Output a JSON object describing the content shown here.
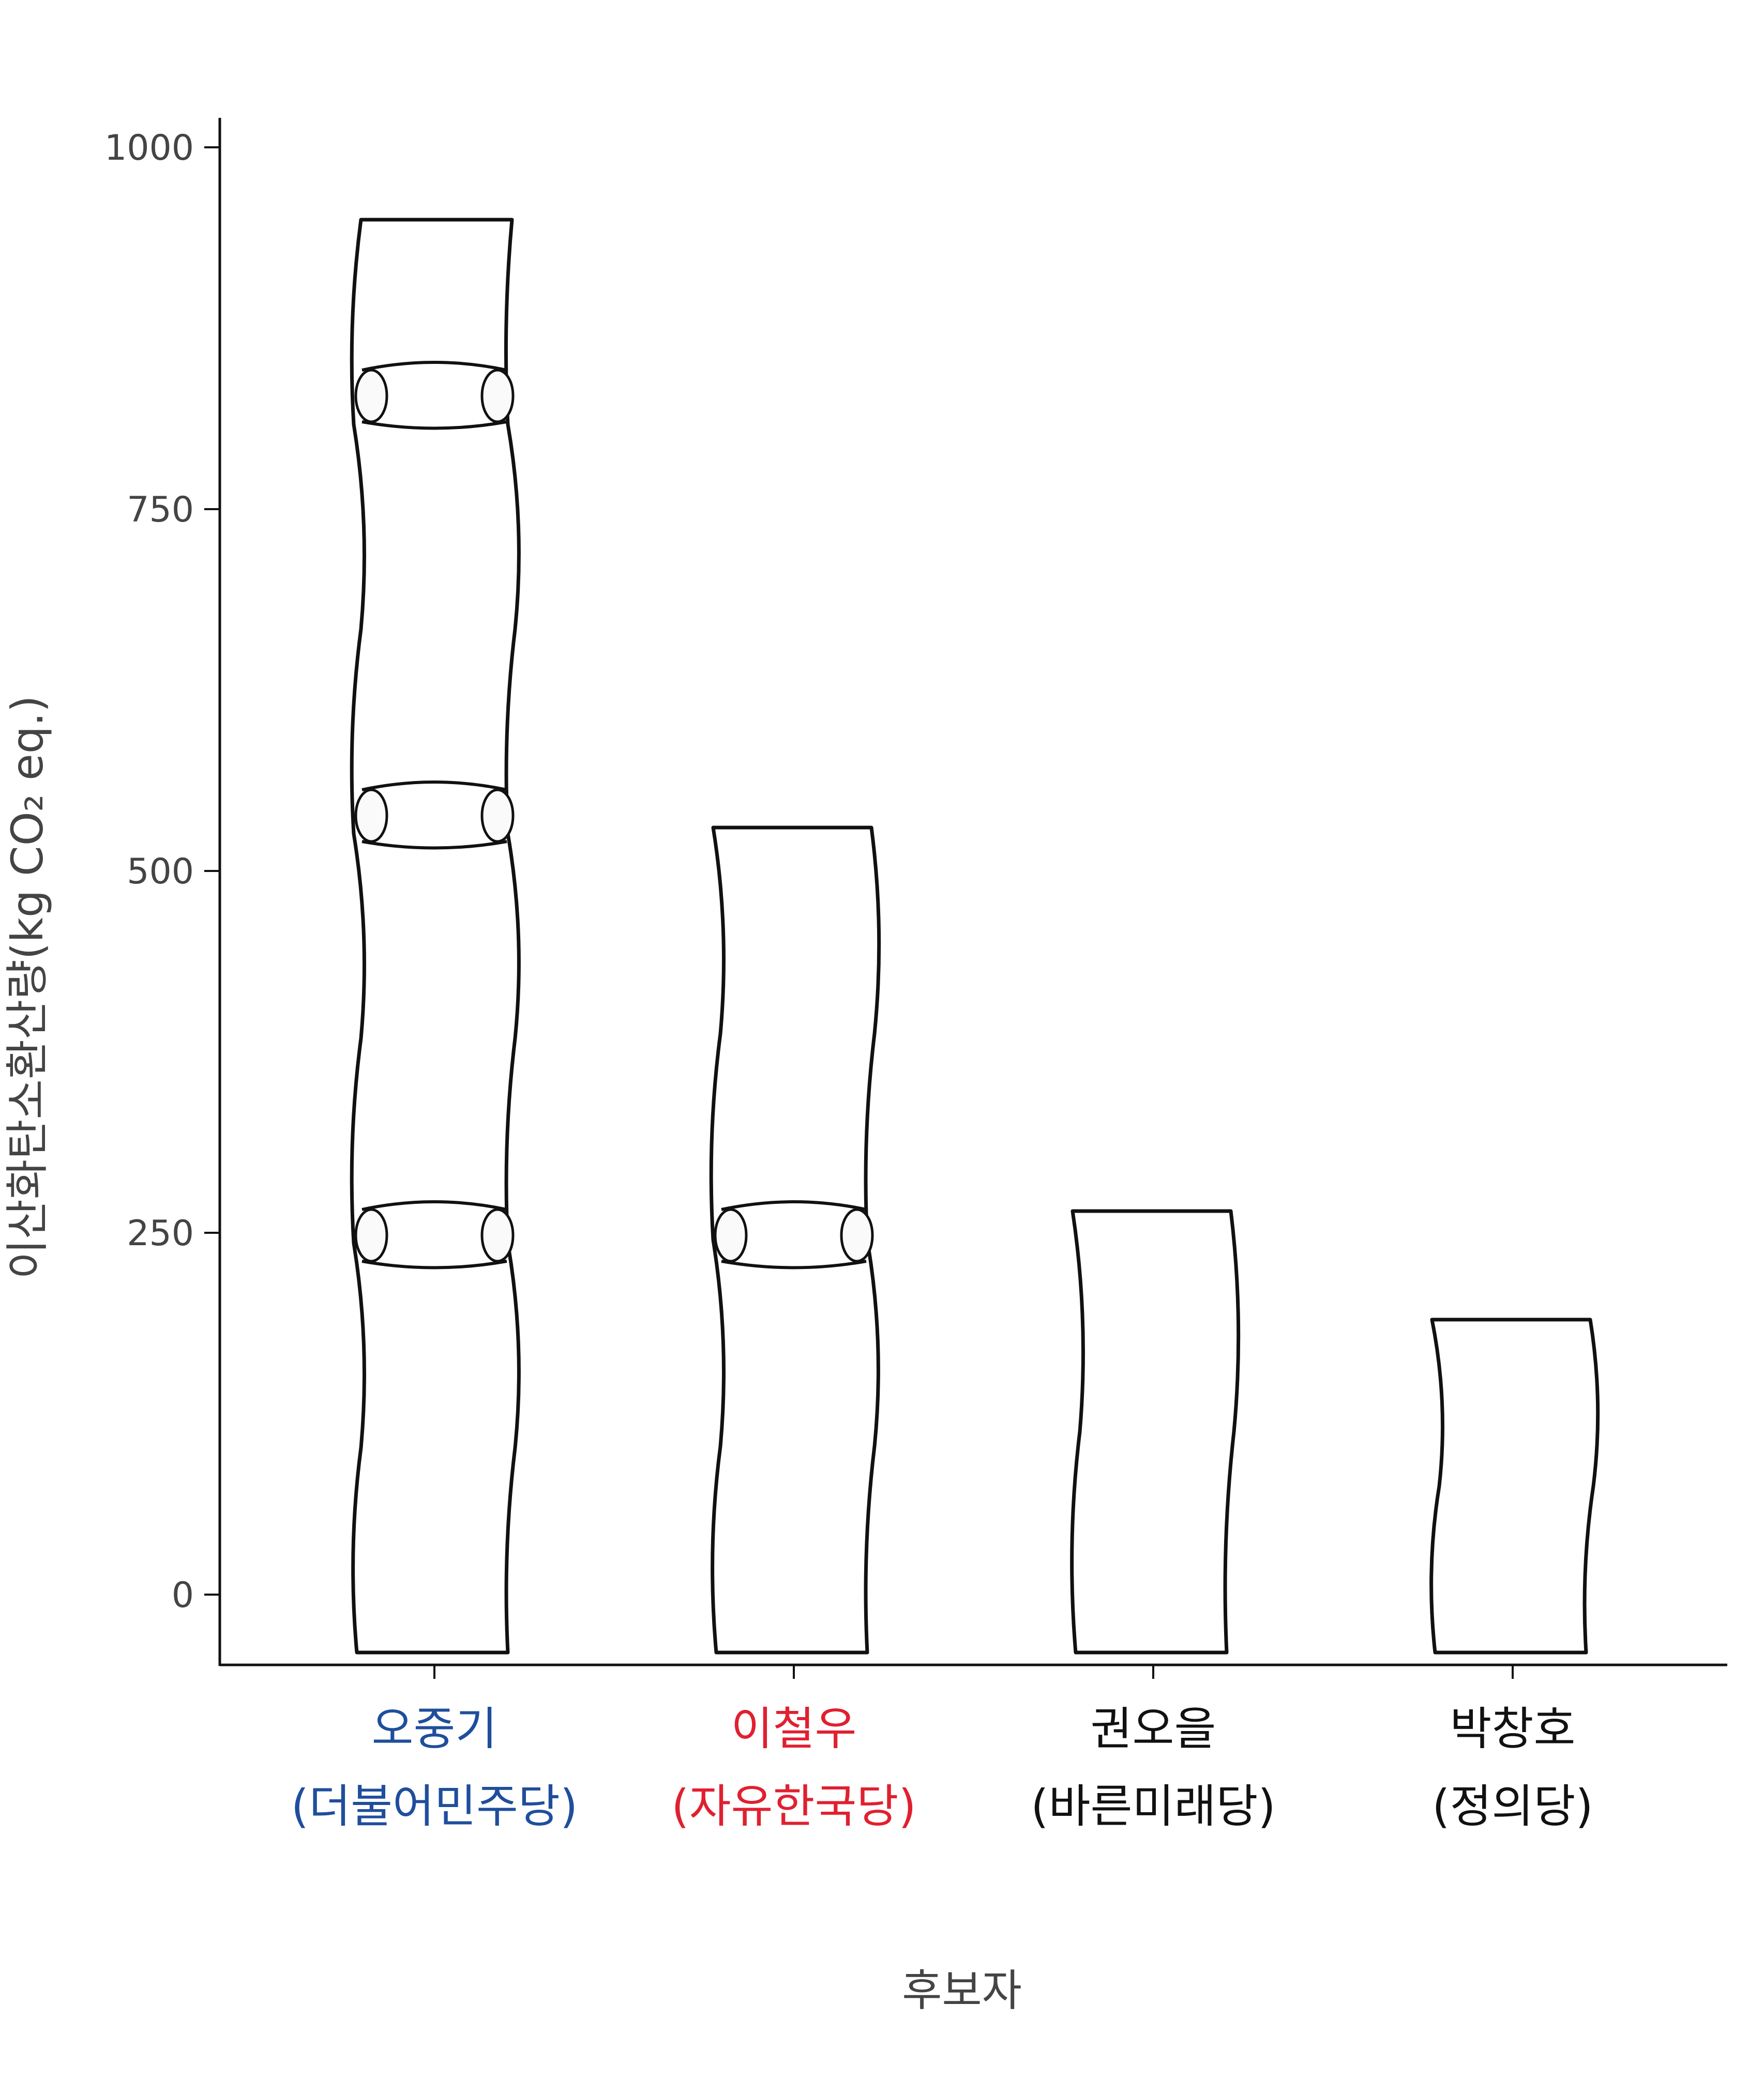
{
  "chart_data": {
    "type": "bar",
    "title": "",
    "xlabel": "후보자",
    "ylabel": "이산화탄소환산량(kg CO₂ eq.)",
    "ylim": [
      -45,
      1020
    ],
    "yticks": [
      0,
      250,
      500,
      750,
      1000
    ],
    "grid": false,
    "legend": "none",
    "categories": [
      {
        "name": "오중기",
        "party": "(더불어민주당)",
        "color": "#1f4e9c"
      },
      {
        "name": "이철우",
        "party": "(자유한국당)",
        "color": "#e02030"
      },
      {
        "name": "권오을",
        "party": "(바른미래당)",
        "color": "#111111"
      },
      {
        "name": "박창호",
        "party": "(정의당)",
        "color": "#111111"
      }
    ],
    "values": [
      950,
      530,
      265,
      190
    ]
  }
}
